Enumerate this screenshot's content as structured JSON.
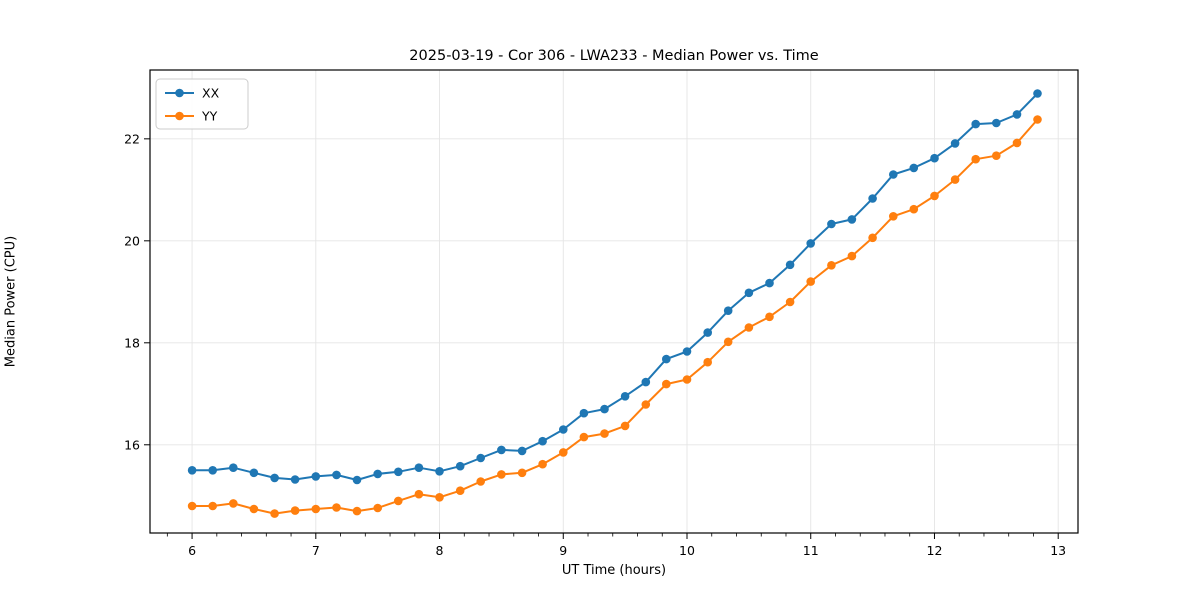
{
  "chart_data": {
    "type": "line",
    "title": "2025-03-19 - Cor 306 - LWA233 - Median Power vs. Time",
    "xlabel": "UT Time (hours)",
    "ylabel": "Median Power (CPU)",
    "xlim": [
      5.66,
      13.16
    ],
    "ylim": [
      14.27,
      23.35
    ],
    "xticks": [
      6,
      7,
      8,
      9,
      10,
      11,
      12,
      13
    ],
    "yticks": [
      16,
      18,
      20,
      22
    ],
    "x_minor_step": 0.2,
    "grid": true,
    "grid_color": "#e5e5e5",
    "legend_position": "upper-left",
    "x": [
      6.0,
      6.167,
      6.333,
      6.5,
      6.667,
      6.833,
      7.0,
      7.167,
      7.333,
      7.5,
      7.667,
      7.833,
      8.0,
      8.167,
      8.333,
      8.5,
      8.667,
      8.833,
      9.0,
      9.167,
      9.333,
      9.5,
      9.667,
      9.833,
      10.0,
      10.167,
      10.333,
      10.5,
      10.667,
      10.833,
      11.0,
      11.167,
      11.333,
      11.5,
      11.667,
      11.833,
      12.0,
      12.167,
      12.333,
      12.5,
      12.667,
      12.833
    ],
    "series": [
      {
        "name": "XX",
        "color": "#1f77b4",
        "values": [
          15.5,
          15.5,
          15.55,
          15.45,
          15.35,
          15.32,
          15.38,
          15.41,
          15.31,
          15.43,
          15.47,
          15.55,
          15.48,
          15.58,
          15.74,
          15.9,
          15.88,
          16.07,
          16.3,
          16.62,
          16.7,
          16.95,
          17.23,
          17.68,
          17.83,
          18.2,
          18.63,
          18.98,
          19.17,
          19.53,
          19.95,
          20.33,
          20.42,
          20.83,
          21.3,
          21.43,
          21.62,
          21.91,
          22.29,
          22.31,
          22.48,
          22.89
        ]
      },
      {
        "name": "YY",
        "color": "#ff7f0e",
        "values": [
          14.8,
          14.8,
          14.85,
          14.74,
          14.65,
          14.71,
          14.74,
          14.77,
          14.7,
          14.76,
          14.9,
          15.03,
          14.97,
          15.1,
          15.28,
          15.42,
          15.45,
          15.62,
          15.85,
          16.15,
          16.22,
          16.37,
          16.79,
          17.19,
          17.28,
          17.62,
          18.02,
          18.3,
          18.51,
          18.8,
          19.2,
          19.52,
          19.7,
          20.06,
          20.48,
          20.62,
          20.88,
          21.2,
          21.6,
          21.67,
          21.92,
          22.38
        ]
      }
    ]
  }
}
